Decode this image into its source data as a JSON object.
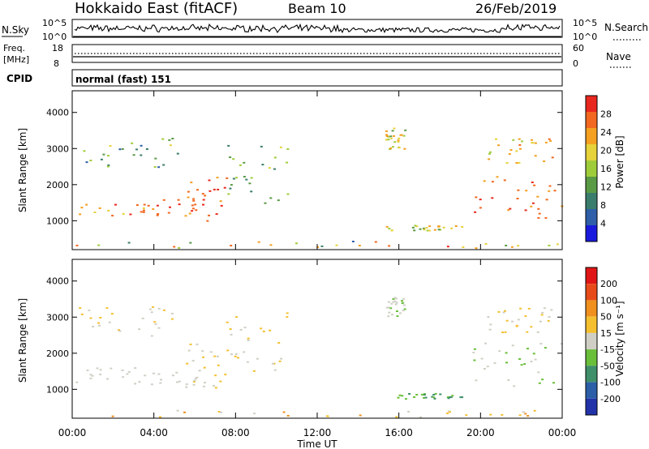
{
  "header": {
    "station": "Hokkaido East (fitACF)",
    "beam": "Beam 10",
    "date": "26/Feb/2019"
  },
  "noise_panel": {
    "left_label": "N.Sky",
    "right_label": "N.Search",
    "top_tick": "10^5",
    "bottom_tick": "10^0"
  },
  "freq_panel": {
    "left_label_1": "Freq.",
    "left_label_2": "[MHz]",
    "left_ticks": [
      "18",
      "8"
    ],
    "right_label": "Nave",
    "right_ticks": [
      "60",
      "0"
    ]
  },
  "cpid_panel": {
    "label": "CPID",
    "mode": "normal (fast) 151"
  },
  "chart_data": [
    {
      "type": "heatmap",
      "name": "power",
      "ylabel": "Slant Range [km]",
      "ylim": [
        200,
        4600
      ],
      "y_ticks": [
        "4000",
        "3000",
        "2000",
        "1000"
      ],
      "colorbar": {
        "label": "Power [dB]",
        "ticks": [
          "28",
          "24",
          "20",
          "16",
          "12",
          "8",
          "4"
        ],
        "colors": [
          "#1a1adc",
          "#2e5fa8",
          "#3b7d6c",
          "#5a9a45",
          "#9fcd3a",
          "#e6d23a",
          "#f4a020",
          "#f26820",
          "#e8281e"
        ]
      }
    },
    {
      "type": "heatmap",
      "name": "velocity",
      "ylabel": "Slant Range [km]",
      "ylim": [
        200,
        4600
      ],
      "y_ticks": [
        "4000",
        "3000",
        "2000",
        "1000"
      ],
      "colorbar": {
        "label": "Velocity [m s⁻¹]",
        "ticks": [
          "200",
          "100",
          "50",
          "15",
          "-15",
          "-50",
          "-100",
          "-200"
        ],
        "colors": [
          "#2233aa",
          "#2c5fa8",
          "#3f8f6a",
          "#6abf3a",
          "#cfcfc5",
          "#f4c030",
          "#f0901e",
          "#e84b1a",
          "#e01616"
        ]
      }
    }
  ],
  "x_axis": {
    "label": "Time UT",
    "ticks": [
      "00:00",
      "04:00",
      "08:00",
      "12:00",
      "16:00",
      "20:00",
      "00:00"
    ]
  }
}
